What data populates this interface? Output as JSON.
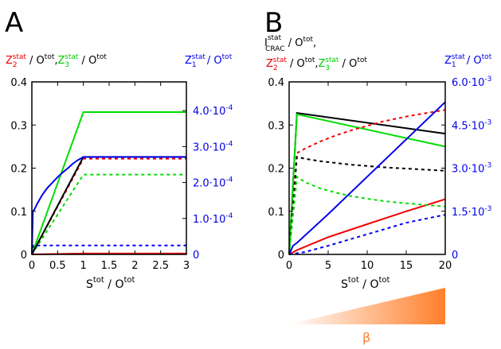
{
  "panel_a": {
    "letter": "A",
    "left_label": {
      "z2": "Z",
      "z2_sub": "2",
      "z2_sup": "stat",
      "sep1": " / O",
      "sep1_sup": "tot",
      "comma": ",",
      "z3": "Z",
      "z3_sub": "3",
      "z3_sup": "stat",
      "sep2": " / O",
      "sep2_sup": "tot"
    },
    "right_label": {
      "z1": "Z",
      "z1_sub": "1",
      "z1_sup": "stat",
      "sep": "/ O",
      "sep_sup": "tot"
    },
    "xlabel": {
      "s": "S",
      "s_sup": "tot",
      "mid": " / O",
      "o_sup": "tot"
    },
    "x_ticks": [
      "0",
      "0.5",
      "1",
      "1.5",
      "2",
      "2.5",
      "3"
    ],
    "y_ticks": [
      "0",
      "0.1",
      "0.2",
      "0.3",
      "0.4"
    ],
    "y2_ticks": [
      {
        "text": "0",
        "exp": ""
      },
      {
        "text": "1.0·10",
        "exp": "-4"
      },
      {
        "text": "2.0·10",
        "exp": "-4"
      },
      {
        "text": "3.0·10",
        "exp": "-4"
      },
      {
        "text": "4.0·10",
        "exp": "-4"
      }
    ]
  },
  "panel_b": {
    "letter": "B",
    "top_label": {
      "i": "I",
      "i_sup": "stat",
      "i_sub": "CRAC",
      "sep": " / O",
      "sep_sup": "tot",
      "comma": ","
    },
    "left_label": {
      "z2": "Z",
      "z2_sub": "2",
      "z2_sup": "stat",
      "sep1": " / O",
      "sep1_sup": "tot",
      "comma": ",",
      "z3": "Z",
      "z3_sub": "3",
      "z3_sup": "stat",
      "sep2": " / O",
      "sep2_sup": "tot"
    },
    "right_label": {
      "z1": "Z",
      "z1_sub": "1",
      "z1_sup": "stat",
      "sep": "/ O",
      "sep_sup": "tot"
    },
    "xlabel": {
      "s": "S",
      "s_sup": "tot",
      "mid": " / O",
      "o_sup": "tot"
    },
    "x_ticks": [
      "0",
      "5",
      "10",
      "15",
      "20"
    ],
    "y_ticks": [
      "0",
      "0.1",
      "0.2",
      "0.3",
      "0.4"
    ],
    "y2_ticks": [
      {
        "text": "0",
        "exp": ""
      },
      {
        "text": "1.5·10",
        "exp": "-3"
      },
      {
        "text": "3.0·10",
        "exp": "-3"
      },
      {
        "text": "4.5·10",
        "exp": "-3"
      },
      {
        "text": "6.0·10",
        "exp": "-3"
      }
    ],
    "beta_label": "β"
  },
  "colors": {
    "red": "#ee0000",
    "green": "#00dd00",
    "blue": "#0000ee",
    "black": "#000000",
    "orange": "#ff7f2a"
  },
  "chart_data": [
    {
      "type": "line",
      "panel": "A",
      "xlim": [
        0,
        3
      ],
      "ylim": [
        0,
        0.4
      ],
      "y2lim": [
        0,
        0.00048
      ],
      "x_ticks": [
        0,
        0.5,
        1,
        1.5,
        2,
        2.5,
        3
      ],
      "y_ticks": [
        0,
        0.1,
        0.2,
        0.3,
        0.4
      ],
      "y2_ticks": [
        0,
        0.0001,
        0.0002,
        0.0003,
        0.0004
      ],
      "series": [
        {
          "color": "red",
          "dash": false,
          "axis": "y",
          "x": [
            0,
            1,
            3
          ],
          "y": [
            0,
            0.002,
            0.002
          ]
        },
        {
          "color": "red",
          "dash": true,
          "axis": "y",
          "x": [
            0,
            1,
            3
          ],
          "y": [
            0,
            0.222,
            0.222
          ]
        },
        {
          "color": "green",
          "dash": false,
          "axis": "y",
          "x": [
            0,
            1,
            3
          ],
          "y": [
            0,
            0.33,
            0.33
          ]
        },
        {
          "color": "green",
          "dash": true,
          "axis": "y",
          "x": [
            0,
            1,
            3
          ],
          "y": [
            0,
            0.185,
            0.185
          ]
        },
        {
          "color": "black",
          "dash": false,
          "axis": "y",
          "x": [
            0,
            1,
            3
          ],
          "y": [
            0,
            0.226,
            0.226
          ]
        },
        {
          "color": "blue",
          "dash": false,
          "axis": "y2",
          "x": [
            0,
            0.02,
            0.05,
            0.1,
            0.2,
            0.3,
            0.4,
            0.5,
            0.6,
            0.7,
            0.8,
            0.9,
            1,
            3
          ],
          "y": [
            0,
            0.00012,
            0.000125,
            0.00014,
            0.000165,
            0.000185,
            0.0002,
            0.000215,
            0.000228,
            0.00024,
            0.000253,
            0.000263,
            0.000271,
            0.000271
          ]
        },
        {
          "color": "blue",
          "dash": true,
          "axis": "y2",
          "x": [
            0,
            0.03,
            3
          ],
          "y": [
            0,
            2.5e-05,
            2.5e-05
          ]
        }
      ]
    },
    {
      "type": "line",
      "panel": "B",
      "xlim": [
        0,
        20
      ],
      "ylim": [
        0,
        0.4
      ],
      "y2lim": [
        0,
        0.006
      ],
      "x_ticks": [
        0,
        5,
        10,
        15,
        20
      ],
      "y_ticks": [
        0,
        0.1,
        0.2,
        0.3,
        0.4
      ],
      "y2_ticks": [
        0,
        0.0015,
        0.003,
        0.0045,
        0.006
      ],
      "series": [
        {
          "color": "black",
          "dash": false,
          "axis": "y",
          "x": [
            0,
            1,
            20
          ],
          "y": [
            0,
            0.328,
            0.28
          ]
        },
        {
          "color": "green",
          "dash": false,
          "axis": "y",
          "x": [
            0,
            1,
            20
          ],
          "y": [
            0,
            0.325,
            0.25
          ]
        },
        {
          "color": "red",
          "dash": false,
          "axis": "y",
          "x": [
            0,
            1,
            5,
            10,
            15,
            20
          ],
          "y": [
            0,
            0.01,
            0.04,
            0.07,
            0.1,
            0.128
          ]
        },
        {
          "color": "red",
          "dash": true,
          "axis": "y",
          "x": [
            0,
            1,
            2,
            4,
            6,
            8,
            10,
            12,
            14,
            16,
            18,
            20
          ],
          "y": [
            0,
            0.235,
            0.245,
            0.262,
            0.276,
            0.288,
            0.298,
            0.308,
            0.316,
            0.323,
            0.329,
            0.335
          ]
        },
        {
          "color": "black",
          "dash": true,
          "axis": "y",
          "x": [
            0,
            1,
            2,
            4,
            6,
            8,
            10,
            12,
            14,
            16,
            18,
            20
          ],
          "y": [
            0,
            0.226,
            0.222,
            0.216,
            0.212,
            0.208,
            0.205,
            0.202,
            0.2,
            0.198,
            0.196,
            0.194
          ]
        },
        {
          "color": "green",
          "dash": true,
          "axis": "y",
          "x": [
            0,
            1,
            2,
            4,
            6,
            8,
            10,
            12,
            14,
            16,
            18,
            20
          ],
          "y": [
            0,
            0.18,
            0.168,
            0.153,
            0.143,
            0.135,
            0.129,
            0.124,
            0.12,
            0.117,
            0.114,
            0.111
          ]
        },
        {
          "color": "blue",
          "dash": false,
          "axis": "y2",
          "x": [
            0,
            0.5,
            1,
            5,
            10,
            15,
            20
          ],
          "y": [
            0,
            0.0003,
            0.0004,
            0.0014,
            0.0027,
            0.004,
            0.0053
          ]
        },
        {
          "color": "blue",
          "dash": true,
          "axis": "y2",
          "x": [
            0,
            2,
            5,
            10,
            15,
            20
          ],
          "y": [
            0,
            8e-05,
            0.0003,
            0.0007,
            0.0011,
            0.00138
          ]
        }
      ]
    }
  ]
}
